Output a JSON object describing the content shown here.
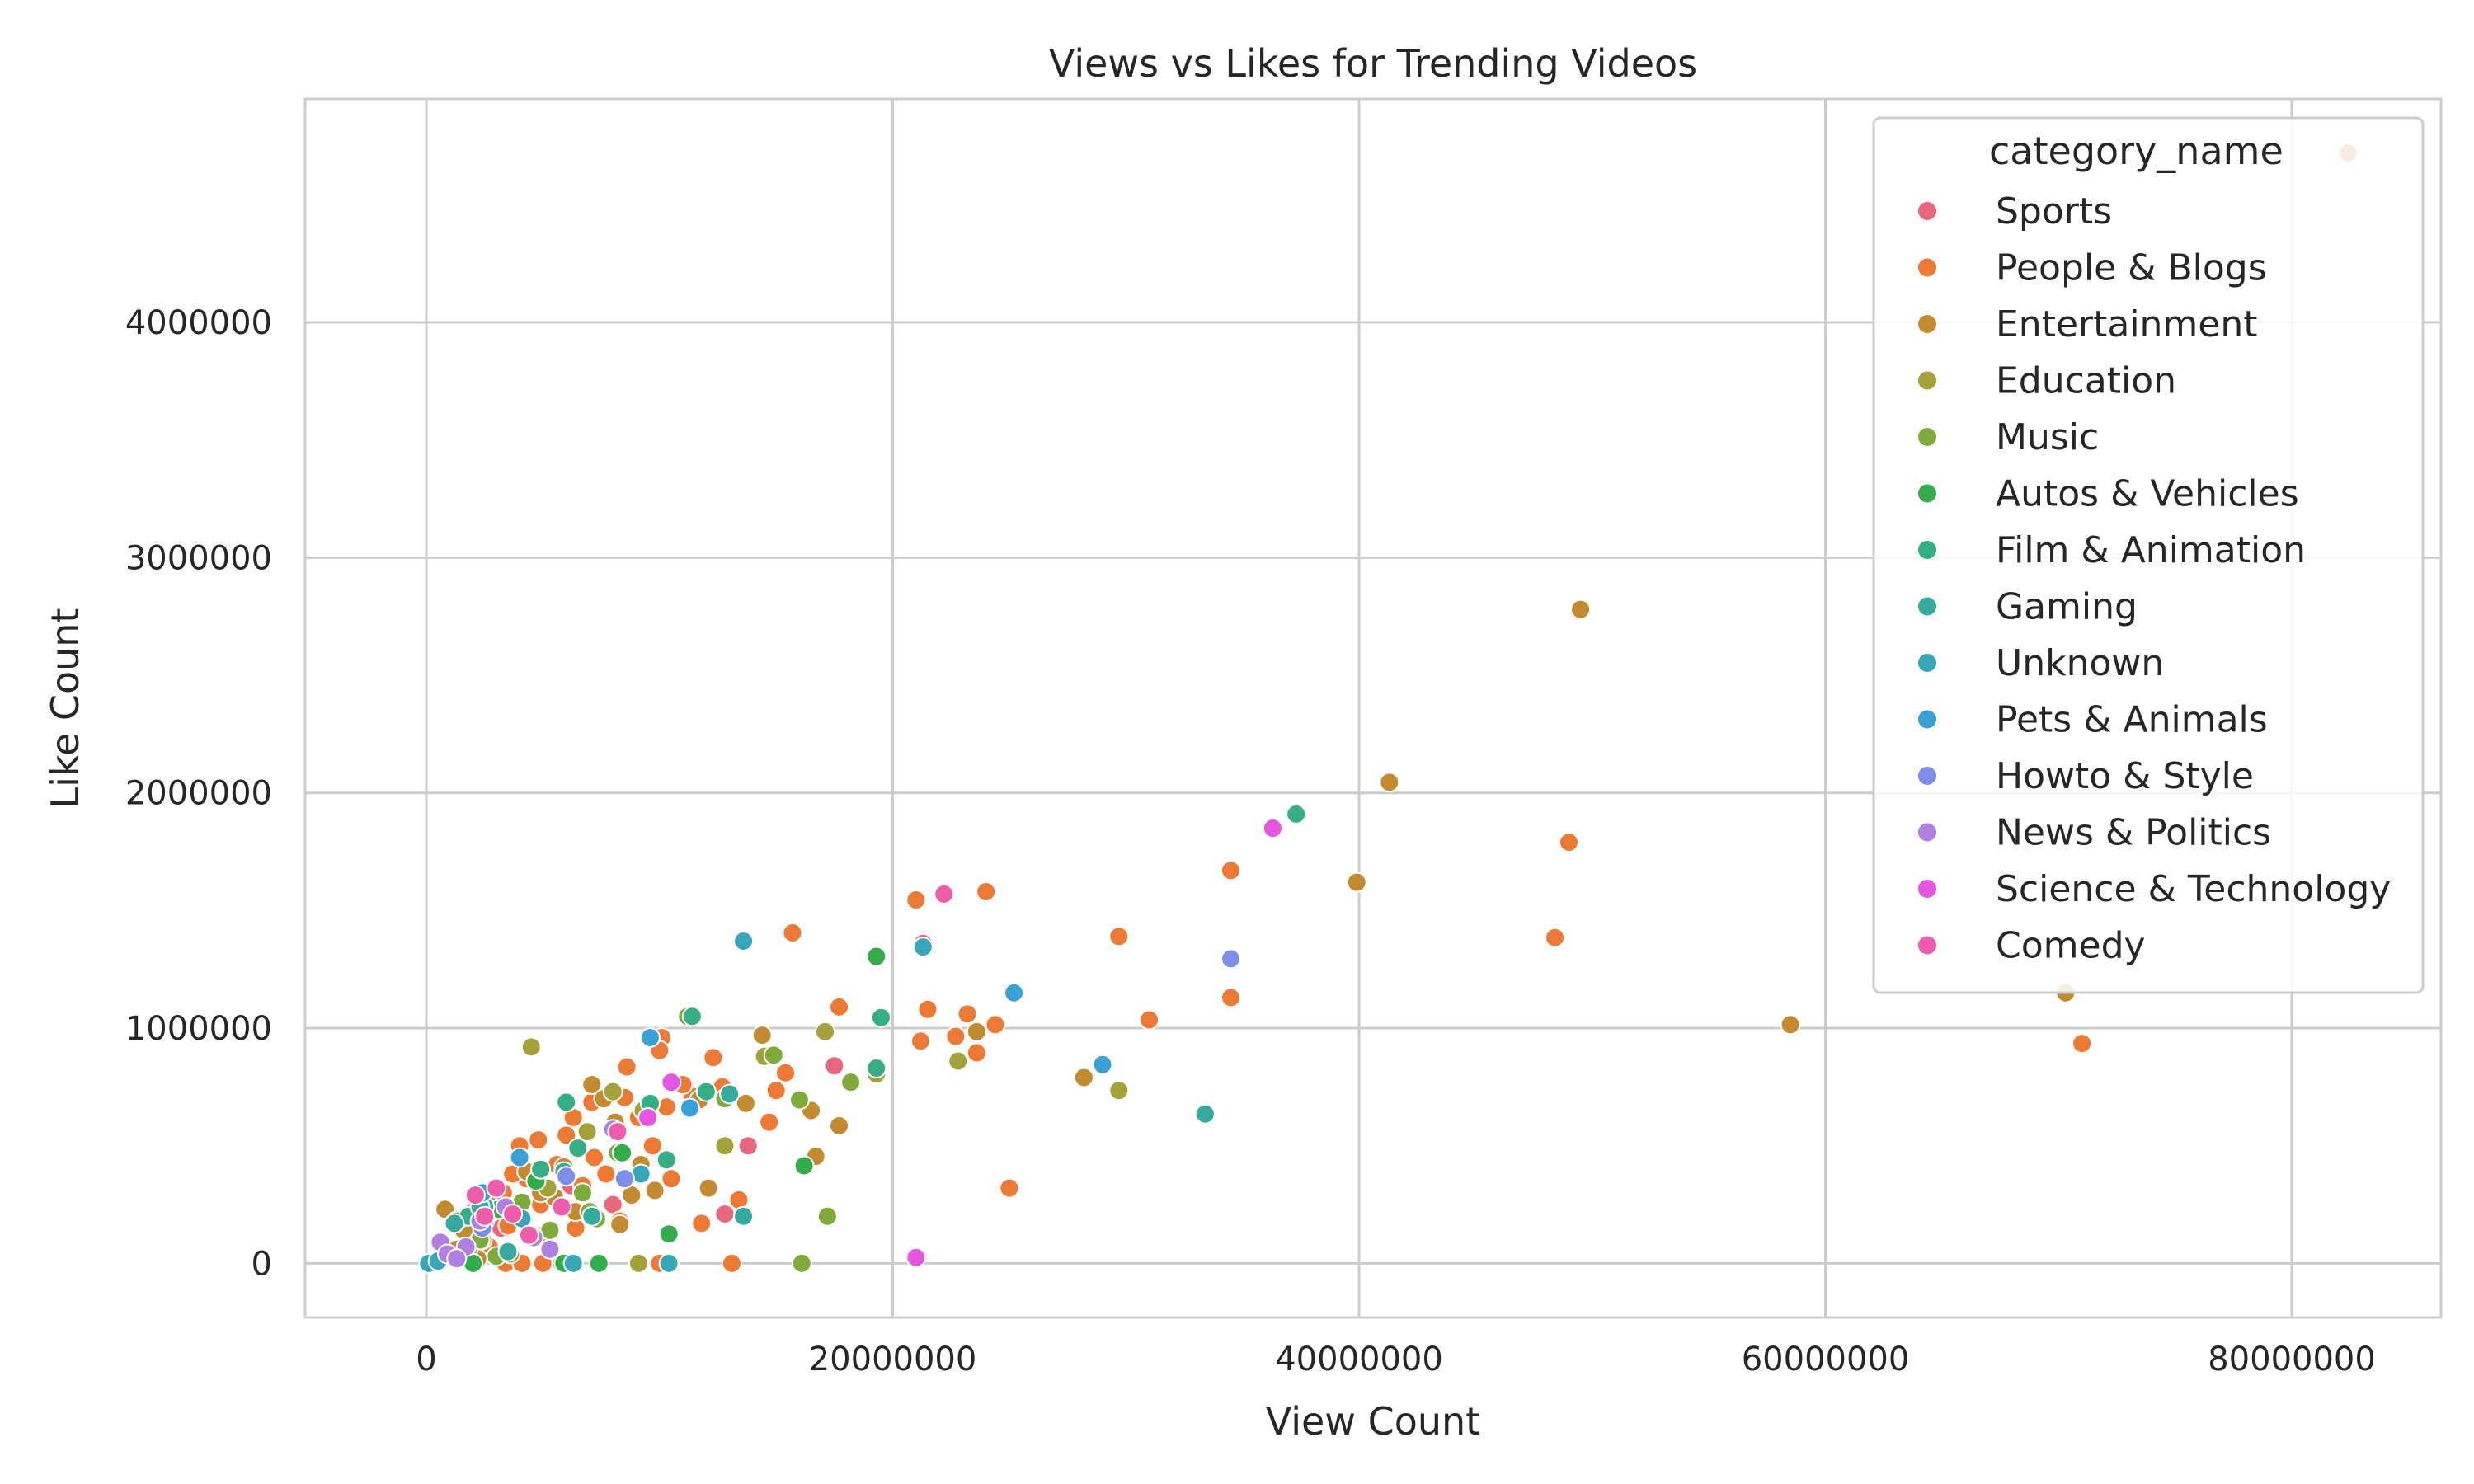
{
  "chart_data": {
    "type": "scatter",
    "title": "Views vs Likes for Trending Videos",
    "xlabel": "View Count",
    "ylabel": "Like Count",
    "xlim": [
      -5200000,
      86400000
    ],
    "ylim": [
      -230000,
      4950000
    ],
    "xticks": [
      0,
      20000000,
      40000000,
      60000000,
      80000000
    ],
    "xtick_labels": [
      "0",
      "20000000",
      "40000000",
      "60000000",
      "80000000"
    ],
    "yticks": [
      0,
      1000000,
      2000000,
      3000000,
      4000000
    ],
    "ytick_labels": [
      "0",
      "1000000",
      "2000000",
      "3000000",
      "4000000"
    ],
    "grid": true,
    "legend": {
      "title": "category_name",
      "position": "top-right"
    },
    "series": [
      {
        "name": "Sports",
        "color": "#e8677c",
        "points": [
          [
            12800000,
            210000
          ],
          [
            13800000,
            500000
          ],
          [
            17500000,
            840000
          ],
          [
            2500000,
            200000
          ],
          [
            5000000,
            120000
          ],
          [
            1500000,
            60000
          ],
          [
            3200000,
            150000
          ],
          [
            6200000,
            330000
          ],
          [
            8000000,
            250000
          ],
          [
            21300000,
            1360000
          ]
        ]
      },
      {
        "name": "People & Blogs",
        "color": "#ec7a35",
        "points": [
          [
            82400000,
            4720000
          ],
          [
            49000000,
            1790000
          ],
          [
            48400000,
            1385000
          ],
          [
            71000000,
            935000
          ],
          [
            34500000,
            1670000
          ],
          [
            34500000,
            1130000
          ],
          [
            29700000,
            1390000
          ],
          [
            31000000,
            1035000
          ],
          [
            24000000,
            1580000
          ],
          [
            21000000,
            1545000
          ],
          [
            15700000,
            1405000
          ],
          [
            17700000,
            1090000
          ],
          [
            21500000,
            1080000
          ],
          [
            23200000,
            1060000
          ],
          [
            24400000,
            1015000
          ],
          [
            21200000,
            945000
          ],
          [
            22700000,
            965000
          ],
          [
            23600000,
            895000
          ],
          [
            25000000,
            320000
          ],
          [
            15400000,
            810000
          ],
          [
            14700000,
            600000
          ],
          [
            15000000,
            735000
          ],
          [
            12300000,
            875000
          ],
          [
            12700000,
            750000
          ],
          [
            11400000,
            710000
          ],
          [
            10100000,
            960000
          ],
          [
            10000000,
            905000
          ],
          [
            8600000,
            835000
          ],
          [
            7100000,
            685000
          ],
          [
            8500000,
            705000
          ],
          [
            9100000,
            620000
          ],
          [
            10300000,
            665000
          ],
          [
            6300000,
            620000
          ],
          [
            6000000,
            545000
          ],
          [
            4800000,
            525000
          ],
          [
            4000000,
            500000
          ],
          [
            5600000,
            420000
          ],
          [
            7200000,
            450000
          ],
          [
            9700000,
            500000
          ],
          [
            10500000,
            360000
          ],
          [
            4300000,
            360000
          ],
          [
            3700000,
            380000
          ],
          [
            3300000,
            300000
          ],
          [
            2600000,
            260000
          ],
          [
            2000000,
            220000
          ],
          [
            3500000,
            160000
          ],
          [
            1800000,
            120000
          ],
          [
            2700000,
            70000
          ],
          [
            1200000,
            40000
          ],
          [
            5000000,
            0
          ],
          [
            3400000,
            0
          ],
          [
            4100000,
            0
          ],
          [
            10000000,
            0
          ],
          [
            13100000,
            0
          ],
          [
            6400000,
            150000
          ],
          [
            8300000,
            180000
          ],
          [
            7700000,
            380000
          ],
          [
            13400000,
            270000
          ],
          [
            11800000,
            170000
          ],
          [
            11000000,
            760000
          ],
          [
            4900000,
            250000
          ],
          [
            6700000,
            330000
          ]
        ]
      },
      {
        "name": "Entertainment",
        "color": "#c48a30",
        "points": [
          [
            49500000,
            2780000
          ],
          [
            41300000,
            2045000
          ],
          [
            39900000,
            1620000
          ],
          [
            58500000,
            1015000
          ],
          [
            70300000,
            1150000
          ],
          [
            28200000,
            790000
          ],
          [
            23600000,
            985000
          ],
          [
            14400000,
            970000
          ],
          [
            13700000,
            680000
          ],
          [
            16500000,
            650000
          ],
          [
            17700000,
            585000
          ],
          [
            16700000,
            455000
          ],
          [
            12100000,
            320000
          ],
          [
            11700000,
            695000
          ],
          [
            7100000,
            760000
          ],
          [
            7600000,
            700000
          ],
          [
            8100000,
            600000
          ],
          [
            9200000,
            420000
          ],
          [
            8800000,
            290000
          ],
          [
            9800000,
            310000
          ],
          [
            8300000,
            165000
          ],
          [
            6400000,
            220000
          ],
          [
            5500000,
            280000
          ],
          [
            4900000,
            300000
          ],
          [
            5900000,
            410000
          ],
          [
            4300000,
            390000
          ],
          [
            2500000,
            180000
          ],
          [
            1600000,
            140000
          ],
          [
            800000,
            230000
          ],
          [
            1300000,
            60000
          ],
          [
            2200000,
            20000
          ],
          [
            3600000,
            40000
          ]
        ]
      },
      {
        "name": "Education",
        "color": "#a3a23a",
        "points": [
          [
            29700000,
            735000
          ],
          [
            22800000,
            860000
          ],
          [
            19300000,
            805000
          ],
          [
            17100000,
            985000
          ],
          [
            14500000,
            880000
          ],
          [
            12800000,
            500000
          ],
          [
            4500000,
            920000
          ],
          [
            6900000,
            560000
          ],
          [
            8000000,
            730000
          ],
          [
            9300000,
            650000
          ],
          [
            5200000,
            320000
          ],
          [
            3800000,
            210000
          ],
          [
            2400000,
            100000
          ],
          [
            1800000,
            60000
          ],
          [
            9100000,
            0
          ],
          [
            6000000,
            0
          ]
        ]
      },
      {
        "name": "Music",
        "color": "#7fab3a",
        "points": [
          [
            18200000,
            770000
          ],
          [
            17200000,
            200000
          ],
          [
            16100000,
            0
          ],
          [
            14900000,
            885000
          ],
          [
            16000000,
            695000
          ],
          [
            11200000,
            1050000
          ],
          [
            12800000,
            700000
          ],
          [
            7000000,
            220000
          ],
          [
            5300000,
            140000
          ],
          [
            4100000,
            260000
          ],
          [
            3000000,
            30000
          ],
          [
            1300000,
            180000
          ],
          [
            2300000,
            100000
          ],
          [
            7300000,
            190000
          ],
          [
            8200000,
            470000
          ],
          [
            6700000,
            300000
          ],
          [
            5800000,
            0
          ]
        ]
      },
      {
        "name": "Autos & Vehicles",
        "color": "#33ac4c",
        "points": [
          [
            19300000,
            1305000
          ],
          [
            16200000,
            415000
          ],
          [
            10400000,
            125000
          ],
          [
            7400000,
            0
          ],
          [
            5900000,
            0
          ],
          [
            2000000,
            0
          ],
          [
            8400000,
            470000
          ],
          [
            3100000,
            230000
          ],
          [
            4700000,
            350000
          ]
        ]
      },
      {
        "name": "Film & Animation",
        "color": "#33ae85",
        "points": [
          [
            37300000,
            1910000
          ],
          [
            19500000,
            1045000
          ],
          [
            19300000,
            830000
          ],
          [
            11400000,
            1050000
          ],
          [
            6000000,
            685000
          ],
          [
            6500000,
            490000
          ],
          [
            9600000,
            680000
          ],
          [
            12000000,
            730000
          ],
          [
            10300000,
            440000
          ],
          [
            2500000,
            240000
          ],
          [
            1800000,
            200000
          ],
          [
            4900000,
            400000
          ]
        ]
      },
      {
        "name": "Gaming",
        "color": "#34ab9e",
        "points": [
          [
            33400000,
            635000
          ],
          [
            13600000,
            200000
          ],
          [
            13000000,
            720000
          ],
          [
            5900000,
            390000
          ],
          [
            7100000,
            200000
          ],
          [
            2300000,
            240000
          ],
          [
            1200000,
            170000
          ],
          [
            3500000,
            50000
          ]
        ]
      },
      {
        "name": "Unknown",
        "color": "#38a6b8",
        "points": [
          [
            21300000,
            1345000
          ],
          [
            13600000,
            1370000
          ],
          [
            10400000,
            0
          ],
          [
            6300000,
            0
          ],
          [
            100000,
            0
          ],
          [
            500000,
            10000
          ],
          [
            9200000,
            380000
          ],
          [
            4100000,
            190000
          ]
        ]
      },
      {
        "name": "Pets & Animals",
        "color": "#3aa0d5",
        "points": [
          [
            25200000,
            1150000
          ],
          [
            29000000,
            845000
          ],
          [
            9600000,
            960000
          ],
          [
            11300000,
            660000
          ],
          [
            4000000,
            450000
          ],
          [
            2400000,
            300000
          ]
        ]
      },
      {
        "name": "Howto & Style",
        "color": "#7d8ee8",
        "points": [
          [
            34500000,
            1295000
          ],
          [
            8500000,
            360000
          ],
          [
            6000000,
            370000
          ],
          [
            2400000,
            150000
          ]
        ]
      },
      {
        "name": "News & Politics",
        "color": "#b07fe4",
        "points": [
          [
            8000000,
            570000
          ],
          [
            600000,
            90000
          ],
          [
            900000,
            40000
          ],
          [
            1700000,
            70000
          ],
          [
            2300000,
            180000
          ],
          [
            3400000,
            240000
          ],
          [
            4600000,
            110000
          ],
          [
            5300000,
            60000
          ],
          [
            1300000,
            20000
          ]
        ]
      },
      {
        "name": "Science & Technology",
        "color": "#e655e1",
        "points": [
          [
            36300000,
            1850000
          ],
          [
            21000000,
            25000
          ],
          [
            10500000,
            770000
          ],
          [
            9500000,
            620000
          ]
        ]
      },
      {
        "name": "Comedy",
        "color": "#ee5cac",
        "points": [
          [
            22200000,
            1570000
          ],
          [
            8200000,
            560000
          ],
          [
            5800000,
            240000
          ],
          [
            2100000,
            290000
          ],
          [
            3000000,
            320000
          ],
          [
            2500000,
            200000
          ],
          [
            4400000,
            120000
          ],
          [
            3700000,
            210000
          ]
        ]
      }
    ]
  }
}
